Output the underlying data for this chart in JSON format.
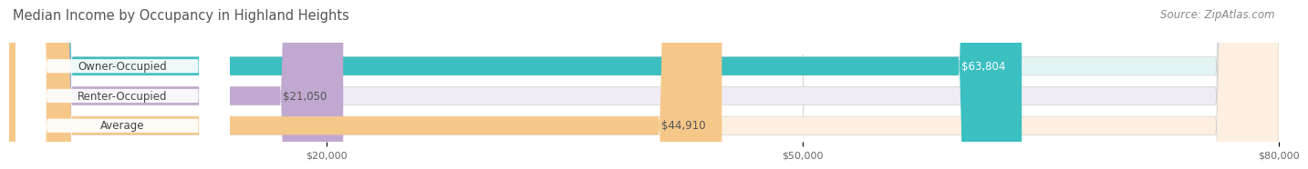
{
  "title": "Median Income by Occupancy in Highland Heights",
  "source": "Source: ZipAtlas.com",
  "categories": [
    "Owner-Occupied",
    "Renter-Occupied",
    "Average"
  ],
  "values": [
    63804,
    21050,
    44910
  ],
  "labels": [
    "$63,804",
    "$21,050",
    "$44,910"
  ],
  "bar_colors": [
    "#3bbfc0",
    "#c0a8d0",
    "#f5c88a"
  ],
  "bar_bg_colors": [
    "#e4f4f4",
    "#f0ecf5",
    "#fdf0e0"
  ],
  "value_text_colors": [
    "#ffffff",
    "#555555",
    "#555555"
  ],
  "xlim": [
    0,
    80000
  ],
  "xticks": [
    20000,
    50000,
    80000
  ],
  "xtick_labels": [
    "$20,000",
    "$50,000",
    "$80,000"
  ],
  "title_fontsize": 10.5,
  "source_fontsize": 8.5,
  "cat_label_fontsize": 8.5,
  "value_fontsize": 8.5,
  "background_color": "#ffffff",
  "bar_gap_color": "#e8e8e8"
}
